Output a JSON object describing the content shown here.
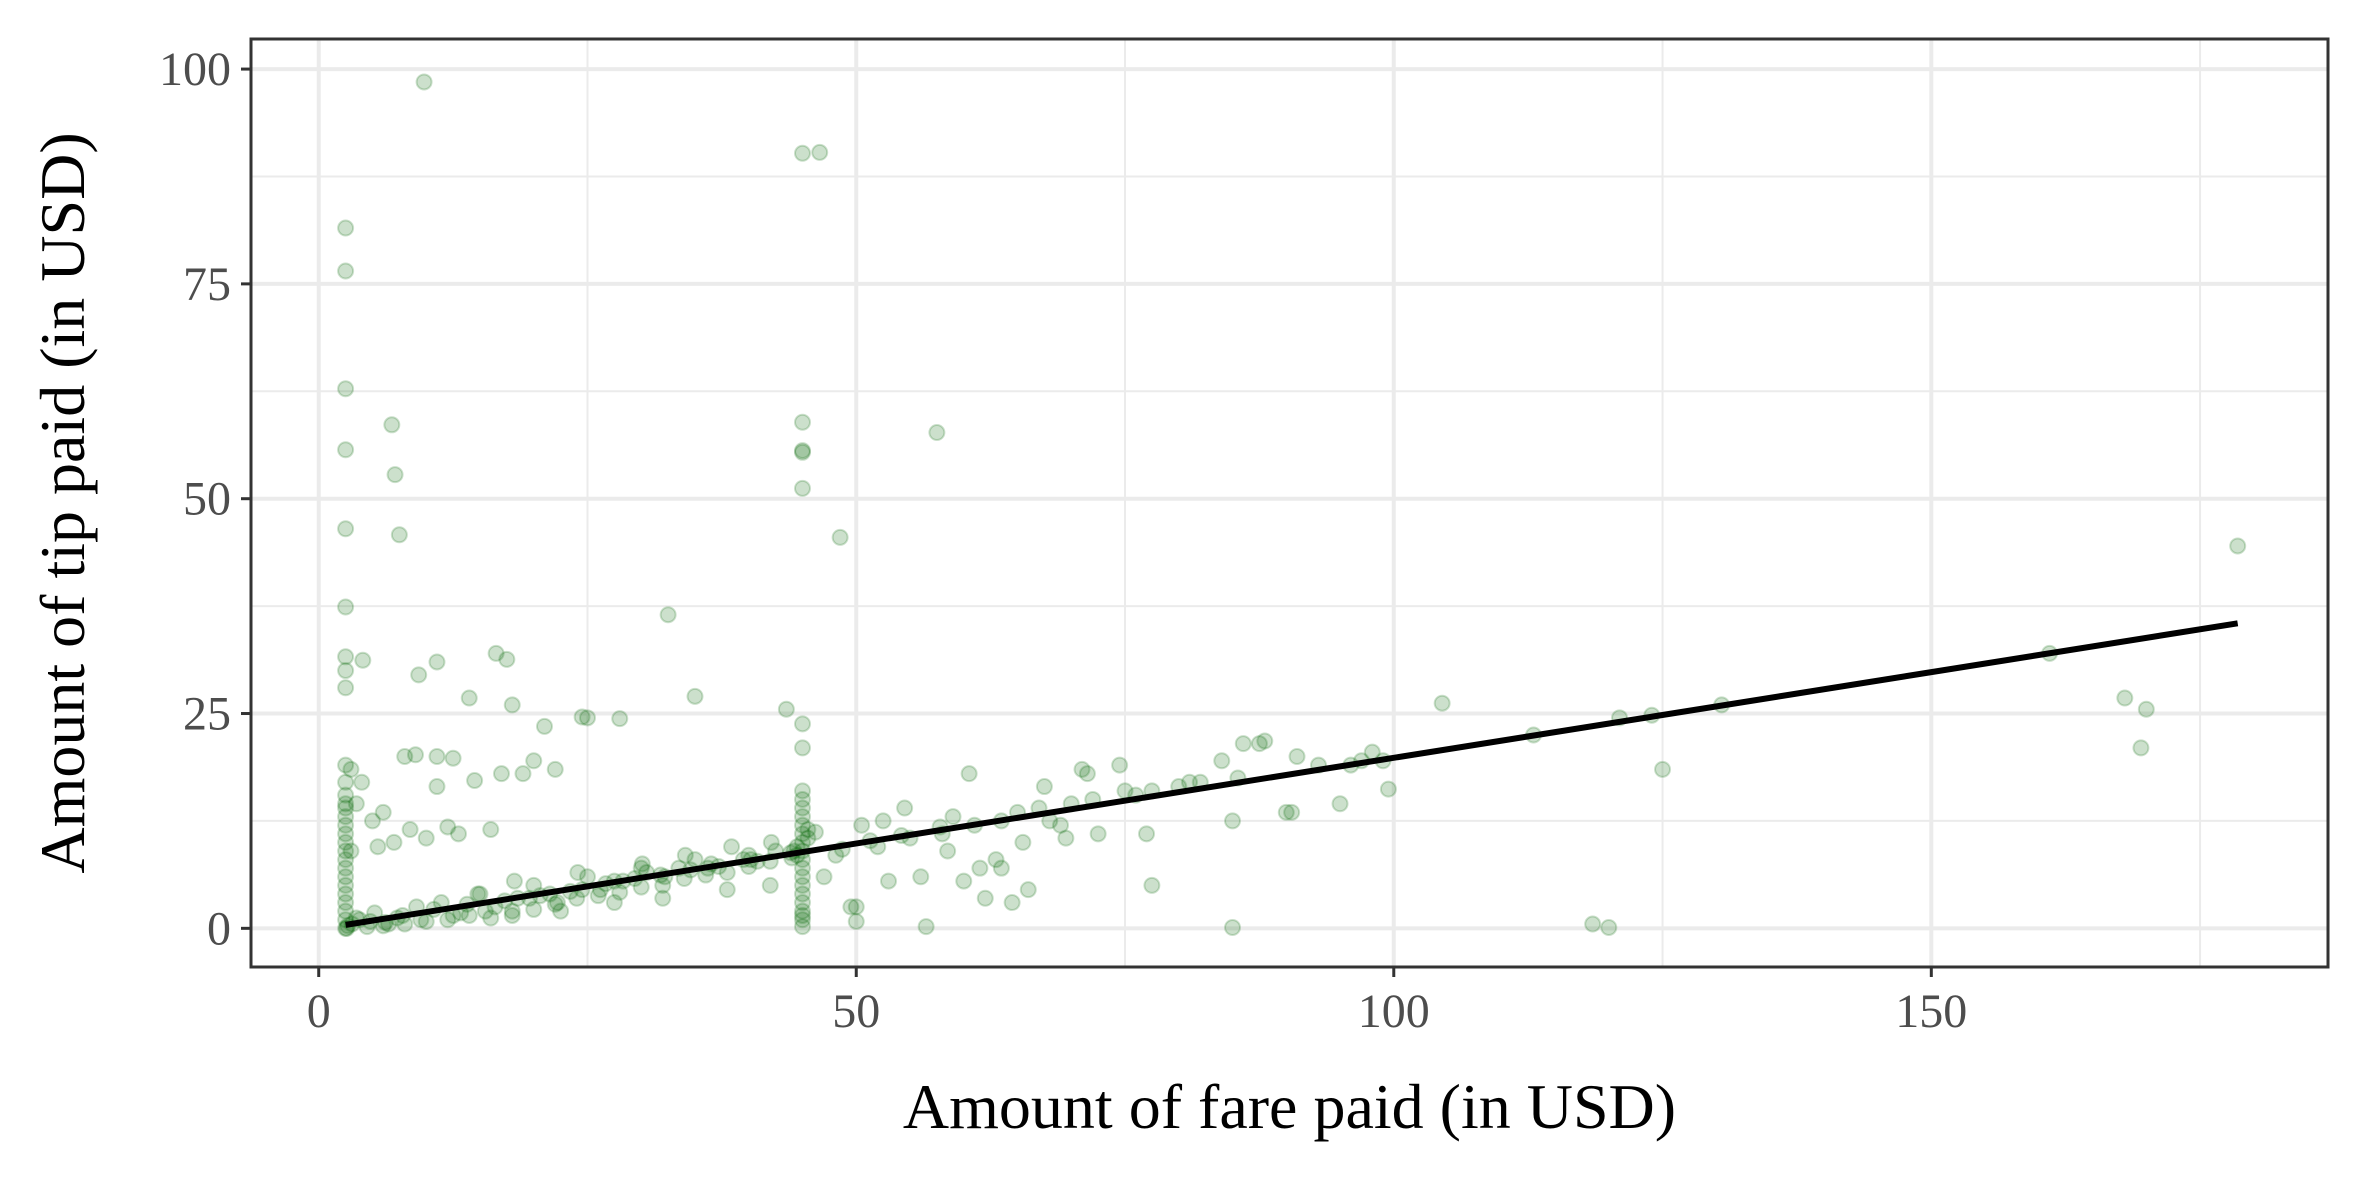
{
  "chart_data": {
    "type": "scatter",
    "title": "",
    "xlabel": "Amount of fare paid (in USD)",
    "ylabel": "Amount of tip paid (in USD)",
    "xlim": [
      -6.3,
      186.9
    ],
    "ylim": [
      -4.5,
      103.5
    ],
    "x_ticks": [
      0,
      50,
      100,
      150
    ],
    "x_tick_labels": [
      "0",
      "50",
      "100",
      "150"
    ],
    "y_ticks": [
      0,
      25,
      50,
      75,
      100
    ],
    "y_tick_labels": [
      "0",
      "25",
      "50",
      "75",
      "100"
    ],
    "grid": true,
    "legend": "none",
    "colors": {
      "points": "#006400",
      "line": "#000000",
      "grid": "#ebebeb",
      "border": "#333333"
    },
    "series": [
      {
        "kind": "points",
        "x": [
          9.8,
          2.5,
          2.5,
          45.0,
          46.6,
          2.5,
          2.5,
          6.8,
          7.1,
          7.5,
          45.0,
          45.0,
          45.0,
          45.0,
          57.5,
          48.5,
          2.5,
          2.5,
          32.5,
          2.5,
          2.5,
          2.5,
          4.1,
          11.0,
          16.5,
          18.0,
          9.3,
          14.0,
          17.5,
          35.0,
          43.5,
          45.0,
          45.0,
          24.5,
          25.0,
          28.0,
          8.0,
          9.0,
          12.5,
          11.0,
          17.0,
          20.0,
          22.0,
          11.0,
          14.5,
          19.0,
          21.0,
          3.0,
          4.0,
          3.5,
          6.0,
          5.0,
          2.5,
          2.5,
          2.5,
          2.5,
          8.5,
          12.0,
          3.0,
          5.5,
          7.0,
          10.0,
          13.0,
          16.0,
          15.0,
          20.0,
          25.0,
          30.0,
          35.0,
          40.0,
          18.0,
          22.5,
          27.5,
          32.0,
          38.0,
          42.0,
          47.0,
          52.0,
          55.0,
          58.0,
          61.0,
          63.5,
          65.0,
          67.0,
          70.0,
          72.0,
          75.0,
          77.5,
          80.0,
          82.0,
          85.0,
          87.5,
          90.0,
          93.0,
          97.0,
          99.0,
          104.5,
          113.0,
          121.0,
          124.0,
          125.0,
          130.5,
          161.0,
          168.0,
          169.5,
          170.0,
          178.5,
          45.0,
          45.0,
          45.0,
          45.0,
          45.0,
          45.0,
          45.0,
          45.0,
          50.0,
          50.0,
          56.5,
          60.0,
          62.0,
          66.0,
          69.5,
          77.5,
          85.0,
          118.5,
          120.0,
          49.5,
          63.5,
          71.0,
          77.0,
          86.0,
          95.0,
          99.5,
          88.0,
          90.5,
          60.5,
          53.0,
          64.5,
          68.0,
          74.5,
          85.5,
          3.5,
          6.5,
          9.5,
          12.5,
          15.5,
          18.5,
          21.5,
          24.5,
          27.5,
          30.5,
          33.5,
          36.5,
          39.5,
          42.5,
          2.7,
          4.8,
          7.3,
          10.7,
          13.8,
          17.3,
          20.6,
          23.4,
          26.7,
          29.4,
          31.8,
          34.6,
          37.2,
          40.8,
          43.9,
          48.7,
          51.3,
          54.2,
          57.8,
          2.6,
          3.1,
          3.8,
          5.2,
          6.2,
          7.8,
          9.1,
          11.4,
          13.2,
          14.8,
          16.4,
          18.2,
          19.6,
          22.2,
          24.1,
          26.2,
          28.3,
          30.1,
          32.2,
          34.1,
          36.2,
          38.4,
          40.2,
          42.1,
          44.2,
          46.2,
          48.1,
          50.5,
          2.5,
          2.5,
          2.5,
          2.5,
          2.5,
          2.5,
          2.5,
          2.5,
          2.5,
          2.5,
          4.5,
          6.0,
          8.0,
          10.0,
          12.0,
          14.0,
          16.0,
          18.0,
          20.0,
          22.0,
          24.0,
          26.0,
          28.0,
          30.0,
          32.0,
          34.0,
          36.0,
          38.0,
          40.0,
          42.0,
          44.0,
          2.5,
          2.5,
          2.5,
          2.5,
          2.5,
          45.0,
          45.0,
          45.0,
          45.0,
          45.0,
          45.0,
          45.0,
          45.0,
          45.0,
          45.0,
          44.5,
          45.5,
          44.5,
          45.5,
          56.0,
          58.5,
          61.5,
          65.5,
          69.0,
          72.5,
          52.5,
          54.5,
          59.0,
          63.0,
          67.5,
          71.5,
          76.0,
          81.0,
          84.0,
          91.0,
          96.0,
          98.0
        ],
        "y": [
          98.5,
          81.5,
          76.5,
          90.2,
          90.3,
          62.8,
          55.7,
          58.6,
          52.8,
          45.8,
          58.9,
          55.4,
          55.6,
          51.2,
          57.7,
          45.5,
          46.5,
          37.4,
          36.5,
          31.6,
          30.0,
          28.0,
          31.2,
          31.0,
          32.0,
          26.0,
          29.5,
          26.8,
          31.3,
          27.0,
          25.5,
          23.8,
          21.0,
          24.6,
          24.5,
          24.4,
          20.0,
          20.2,
          19.8,
          20.0,
          18.0,
          19.5,
          18.5,
          16.5,
          17.2,
          18.0,
          23.5,
          18.5,
          17.0,
          14.5,
          13.5,
          12.5,
          19.0,
          17.0,
          15.5,
          14.0,
          11.5,
          11.8,
          9.0,
          9.5,
          10.0,
          10.5,
          11.0,
          11.5,
          4.0,
          5.0,
          6.0,
          7.0,
          8.0,
          8.5,
          1.5,
          2.0,
          3.0,
          3.5,
          4.5,
          5.0,
          6.0,
          9.5,
          10.5,
          11.0,
          12.0,
          12.5,
          13.5,
          14.0,
          14.5,
          15.0,
          16.0,
          16.0,
          16.5,
          17.0,
          12.5,
          21.5,
          13.5,
          19.0,
          19.5,
          19.5,
          26.2,
          22.5,
          24.5,
          24.8,
          18.5,
          26.0,
          32.0,
          26.8,
          21.0,
          25.5,
          44.5,
          0.2,
          1.5,
          3.0,
          5.0,
          7.0,
          9.0,
          11.0,
          13.0,
          0.8,
          2.5,
          0.2,
          5.5,
          3.5,
          4.5,
          10.5,
          5.0,
          0.1,
          0.5,
          0.1,
          2.5,
          7.0,
          18.5,
          11.0,
          21.5,
          14.5,
          16.2,
          21.8,
          13.5,
          18.0,
          5.5,
          3.0,
          12.5,
          19.0,
          17.5,
          1.2,
          0.5,
          1.0,
          1.5,
          2.0,
          3.5,
          4.0,
          4.5,
          5.5,
          6.5,
          7.0,
          7.5,
          8.0,
          9.0,
          0.3,
          0.8,
          1.2,
          2.2,
          2.8,
          3.2,
          3.8,
          4.3,
          5.2,
          5.8,
          6.2,
          6.8,
          7.2,
          7.8,
          8.8,
          9.2,
          10.2,
          10.8,
          11.8,
          0.0,
          0.5,
          1.0,
          1.8,
          0.7,
          1.5,
          2.5,
          3.0,
          1.8,
          4.0,
          2.5,
          5.5,
          3.5,
          3.0,
          6.5,
          4.5,
          5.5,
          7.5,
          6.0,
          8.5,
          7.0,
          9.5,
          8.0,
          10.0,
          9.0,
          11.2,
          8.5,
          12.0,
          0.0,
          1.0,
          2.0,
          3.0,
          4.0,
          5.0,
          6.0,
          7.0,
          8.0,
          9.0,
          0.2,
          0.3,
          0.5,
          0.8,
          1.0,
          1.5,
          1.2,
          2.0,
          2.2,
          2.8,
          3.5,
          3.8,
          4.2,
          4.8,
          5.0,
          5.8,
          6.2,
          6.5,
          7.2,
          7.8,
          8.2,
          10.0,
          11.0,
          12.0,
          13.0,
          14.5,
          1.0,
          2.0,
          4.0,
          6.0,
          8.0,
          10.0,
          12.0,
          14.0,
          15.0,
          16.0,
          9.5,
          10.5,
          8.5,
          11.5,
          6.0,
          9.0,
          7.0,
          10.0,
          12.0,
          11.0,
          12.5,
          14.0,
          13.0,
          8.0,
          16.5,
          18.0,
          15.5,
          17.0,
          19.5,
          20.0,
          19.0,
          20.5
        ]
      },
      {
        "kind": "fit-line",
        "x": [
          2.5,
          178.5
        ],
        "y": [
          0.4,
          35.5
        ]
      }
    ]
  }
}
